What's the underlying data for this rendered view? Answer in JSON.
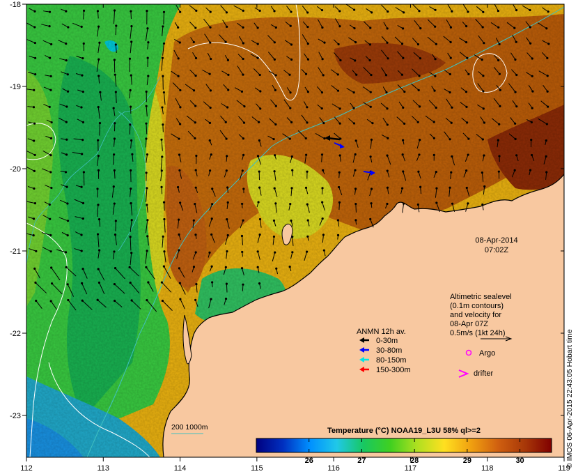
{
  "map": {
    "lon_ticks": [
      "112",
      "113",
      "114",
      "115",
      "116",
      "117",
      "118",
      "119"
    ],
    "lat_ticks": [
      "-18",
      "-19",
      "-20",
      "-21",
      "-22",
      "-23"
    ],
    "date_line": "08-Apr-2014",
    "time_line": "07:02Z"
  },
  "altimetry_note": {
    "line1": "Altimetric sealevel",
    "line2": "(0.1m contours)",
    "line3": "and velocity for",
    "line4": "08-Apr 07Z",
    "line5": "0.5m/s (1kt 24h)"
  },
  "anmn_legend": {
    "title": "ANMN 12h av.",
    "items": [
      {
        "label": "0-30m",
        "color": "#000000"
      },
      {
        "label": "30-80m",
        "color": "#0000ff"
      },
      {
        "label": "80-150m",
        "color": "#00e5e5"
      },
      {
        "label": "150-300m",
        "color": "#ff0000"
      }
    ]
  },
  "markers": {
    "argo_label": "Argo",
    "argo_color": "#ff00ff",
    "drifter_label": "drifter",
    "drifter_color": "#ff00ff"
  },
  "bathymetry": {
    "label": "200  1000m",
    "color": "#40c0c0"
  },
  "colorbar": {
    "title": "Temperature (°C) NOAA19_L3U 58% ql>=2",
    "ticks": [
      "26",
      "27",
      "28",
      "29",
      "30"
    ],
    "range": [
      25.0,
      30.6
    ],
    "stops": [
      "#000080",
      "#0030c0",
      "#0090ff",
      "#20c8e8",
      "#18c860",
      "#40d020",
      "#b0e020",
      "#ffe020",
      "#f0a010",
      "#d06010",
      "#a83808",
      "#800000"
    ]
  },
  "credit": "© IMOS 06-Apr-2015 22:43:05 Hobart time",
  "colors": {
    "land": "#f8c8a0",
    "contour": "#ffffff",
    "isobath": "#40c0c0"
  }
}
